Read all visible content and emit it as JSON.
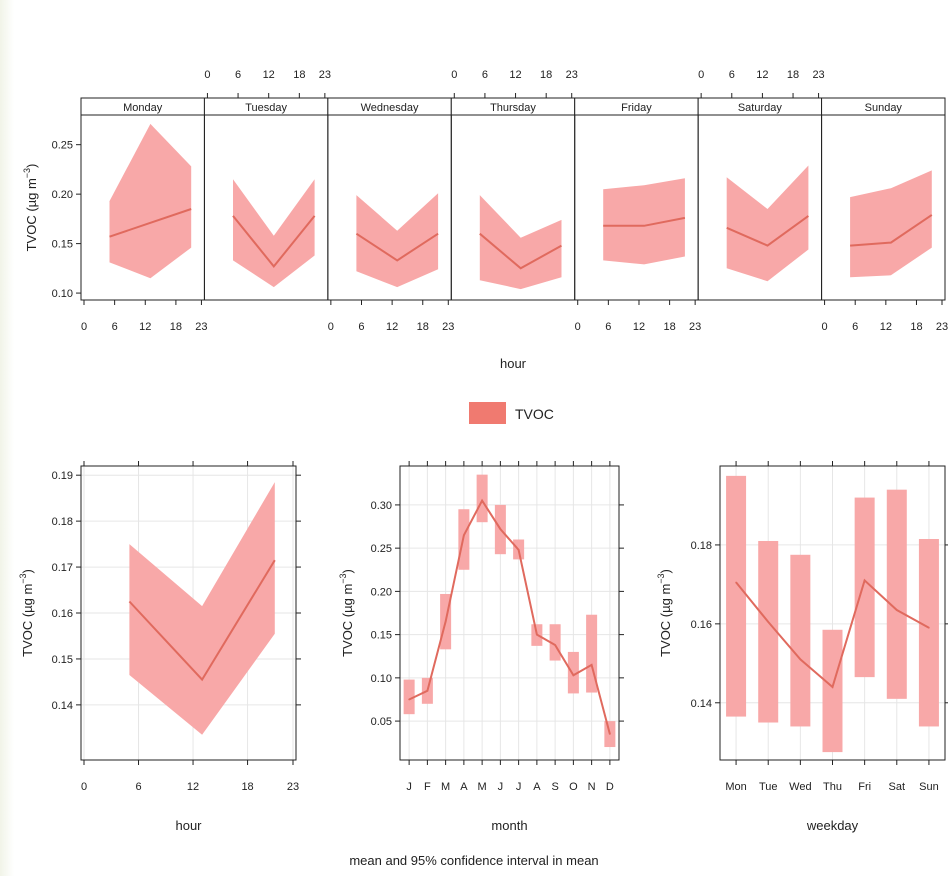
{
  "colors": {
    "band": "#f8a8a8",
    "line": "#e06a5e",
    "legend_swatch": "#f07a70",
    "frame": "#222222",
    "grid": "#e6e6e6",
    "strip": "#ffffff",
    "background": "#ffffff"
  },
  "legend": {
    "label": "TVOC"
  },
  "footer": {
    "caption": "mean and 95% confidence interval in mean"
  },
  "chart_data": [
    {
      "type": "area",
      "panel": "weekday-hour",
      "xlabel": "hour",
      "ylabel": "TVOC (µg m⁻³)",
      "ylim": [
        0.093,
        0.28
      ],
      "xlim": [
        0,
        23
      ],
      "xticks": [
        0,
        6,
        12,
        18,
        23
      ],
      "yticks": [
        0.1,
        0.15,
        0.2,
        0.25
      ],
      "ytick_labels": [
        "0.10",
        "0.15",
        "0.20",
        "0.25"
      ],
      "grid": false,
      "facets": [
        {
          "name": "Monday",
          "x": [
            5,
            13,
            21
          ],
          "mean": [
            0.157,
            0.171,
            0.185
          ],
          "lower": [
            0.131,
            0.115,
            0.146
          ],
          "upper": [
            0.193,
            0.271,
            0.228
          ]
        },
        {
          "name": "Tuesday",
          "x": [
            5,
            13,
            21
          ],
          "mean": [
            0.178,
            0.127,
            0.178
          ],
          "lower": [
            0.133,
            0.106,
            0.138
          ],
          "upper": [
            0.215,
            0.158,
            0.215
          ]
        },
        {
          "name": "Wednesday",
          "x": [
            5,
            13,
            21
          ],
          "mean": [
            0.16,
            0.133,
            0.16
          ],
          "lower": [
            0.122,
            0.106,
            0.124
          ],
          "upper": [
            0.199,
            0.163,
            0.201
          ]
        },
        {
          "name": "Thursday",
          "x": [
            5,
            13,
            21
          ],
          "mean": [
            0.16,
            0.125,
            0.148
          ],
          "lower": [
            0.113,
            0.104,
            0.116
          ],
          "upper": [
            0.199,
            0.156,
            0.174
          ]
        },
        {
          "name": "Friday",
          "x": [
            5,
            13,
            21
          ],
          "mean": [
            0.168,
            0.168,
            0.176
          ],
          "lower": [
            0.133,
            0.129,
            0.137
          ],
          "upper": [
            0.205,
            0.209,
            0.216
          ]
        },
        {
          "name": "Saturday",
          "x": [
            5,
            13,
            21
          ],
          "mean": [
            0.166,
            0.148,
            0.178
          ],
          "lower": [
            0.125,
            0.112,
            0.144
          ],
          "upper": [
            0.217,
            0.185,
            0.229
          ]
        },
        {
          "name": "Sunday",
          "x": [
            5,
            13,
            21
          ],
          "mean": [
            0.148,
            0.151,
            0.179
          ],
          "lower": [
            0.116,
            0.118,
            0.146
          ],
          "upper": [
            0.197,
            0.206,
            0.224
          ]
        }
      ]
    },
    {
      "type": "area",
      "panel": "hour",
      "xlabel": "hour",
      "ylabel": "TVOC (µg m⁻³)",
      "ylim": [
        0.128,
        0.192
      ],
      "xlim": [
        0,
        23
      ],
      "xticks": [
        0,
        6,
        12,
        18,
        23
      ],
      "yticks": [
        0.14,
        0.15,
        0.16,
        0.17,
        0.18,
        0.19
      ],
      "ytick_labels": [
        "0.14",
        "0.15",
        "0.16",
        "0.17",
        "0.18",
        "0.19"
      ],
      "grid": true,
      "x": [
        5,
        13,
        21
      ],
      "mean": [
        0.1625,
        0.1455,
        0.1715
      ],
      "lower": [
        0.1465,
        0.1335,
        0.1555
      ],
      "upper": [
        0.175,
        0.1615,
        0.1885
      ]
    },
    {
      "type": "line",
      "panel": "month",
      "xlabel": "month",
      "ylabel": "TVOC (µg m⁻³)",
      "ylim": [
        0.005,
        0.345
      ],
      "yticks": [
        0.05,
        0.1,
        0.15,
        0.2,
        0.25,
        0.3
      ],
      "ytick_labels": [
        "0.05",
        "0.10",
        "0.15",
        "0.20",
        "0.25",
        "0.30"
      ],
      "grid": true,
      "categories": [
        "J",
        "F",
        "M",
        "A",
        "M",
        "J",
        "J",
        "A",
        "S",
        "O",
        "N",
        "D"
      ],
      "mean": [
        0.075,
        0.085,
        0.165,
        0.265,
        0.305,
        0.272,
        0.248,
        0.15,
        0.138,
        0.103,
        0.115,
        0.035
      ],
      "lower": [
        0.058,
        0.07,
        0.133,
        0.225,
        0.28,
        0.243,
        0.237,
        0.137,
        0.12,
        0.082,
        0.083,
        0.02
      ],
      "upper": [
        0.098,
        0.1,
        0.197,
        0.295,
        0.335,
        0.3,
        0.26,
        0.162,
        0.162,
        0.13,
        0.173,
        0.05
      ]
    },
    {
      "type": "line",
      "panel": "weekday",
      "xlabel": "weekday",
      "ylabel": "TVOC (µg m⁻³)",
      "ylim": [
        0.1255,
        0.2
      ],
      "yticks": [
        0.14,
        0.16,
        0.18
      ],
      "ytick_labels": [
        "0.14",
        "0.16",
        "0.18"
      ],
      "grid": true,
      "categories": [
        "Mon",
        "Tue",
        "Wed",
        "Thu",
        "Fri",
        "Sat",
        "Sun"
      ],
      "mean": [
        0.1705,
        0.1605,
        0.151,
        0.144,
        0.171,
        0.1635,
        0.159
      ],
      "lower": [
        0.1365,
        0.135,
        0.134,
        0.1275,
        0.1465,
        0.141,
        0.134
      ],
      "upper": [
        0.1975,
        0.181,
        0.1775,
        0.1585,
        0.192,
        0.194,
        0.1815
      ]
    }
  ]
}
